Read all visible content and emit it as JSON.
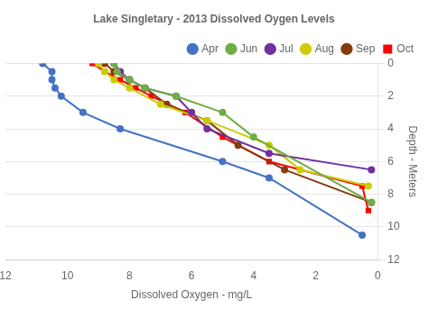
{
  "chart_data": {
    "type": "line",
    "title": "Lake Singletary - 2013 Dissolved Oygen Levels",
    "xlabel": "Dissolved Oxygen - mg/L",
    "ylabel": "Depth - Meters",
    "xlim": [
      12,
      0
    ],
    "ylim": [
      12,
      0
    ],
    "xticks": [
      0,
      2,
      4,
      6,
      8,
      10,
      12
    ],
    "yticks": [
      0,
      2,
      4,
      6,
      8,
      10,
      12
    ],
    "grid": "y",
    "legend": "upper right",
    "series": [
      {
        "name": "Apr",
        "color": "#4472C4",
        "marker": "circle",
        "x": [
          10.8,
          10.5,
          10.5,
          10.4,
          10.2,
          9.5,
          8.3,
          5.0,
          3.5,
          0.5
        ],
        "values": [
          0,
          0.5,
          1,
          1.5,
          2,
          3,
          4,
          6,
          7,
          10.5
        ]
      },
      {
        "name": "Jun",
        "color": "#70AD47",
        "marker": "circle",
        "x": [
          8.5,
          8.4,
          8.0,
          7.5,
          6.5,
          5.0,
          4.0,
          0.2
        ],
        "values": [
          0,
          0.5,
          1,
          1.5,
          2,
          3,
          4.5,
          8.5
        ]
      },
      {
        "name": "Jul",
        "color": "#7030A0",
        "marker": "circle",
        "x": [
          8.5,
          8.3,
          8.0,
          7.5,
          6.5,
          6.0,
          5.5,
          3.5,
          0.2
        ],
        "values": [
          0,
          0.5,
          1,
          1.5,
          2,
          3,
          4,
          5.5,
          6.5
        ]
      },
      {
        "name": "Aug",
        "color": "#CCCC00",
        "marker": "circle",
        "x": [
          9.0,
          8.8,
          8.5,
          8.0,
          7.0,
          5.5,
          3.5,
          2.5,
          0.3
        ],
        "values": [
          0,
          0.5,
          1,
          1.5,
          2.5,
          3.5,
          5,
          6.5,
          7.5
        ]
      },
      {
        "name": "Sep",
        "color": "#843C0C",
        "marker": "circle",
        "x": [
          8.8,
          8.5,
          8.0,
          7.5,
          6.8,
          5.5,
          4.5,
          3.0,
          0.2
        ],
        "values": [
          0,
          0.5,
          1,
          1.5,
          2.5,
          3.5,
          5,
          6.5,
          8.5
        ]
      },
      {
        "name": "Oct",
        "color": "#FF0000",
        "marker": "square",
        "x": [
          9.2,
          8.8,
          8.3,
          7.8,
          7.3,
          6.2,
          5.0,
          3.5,
          0.5,
          0.3
        ],
        "values": [
          0,
          0.5,
          1,
          1.5,
          2,
          3,
          4.5,
          6,
          7.5,
          9.0
        ]
      }
    ]
  }
}
